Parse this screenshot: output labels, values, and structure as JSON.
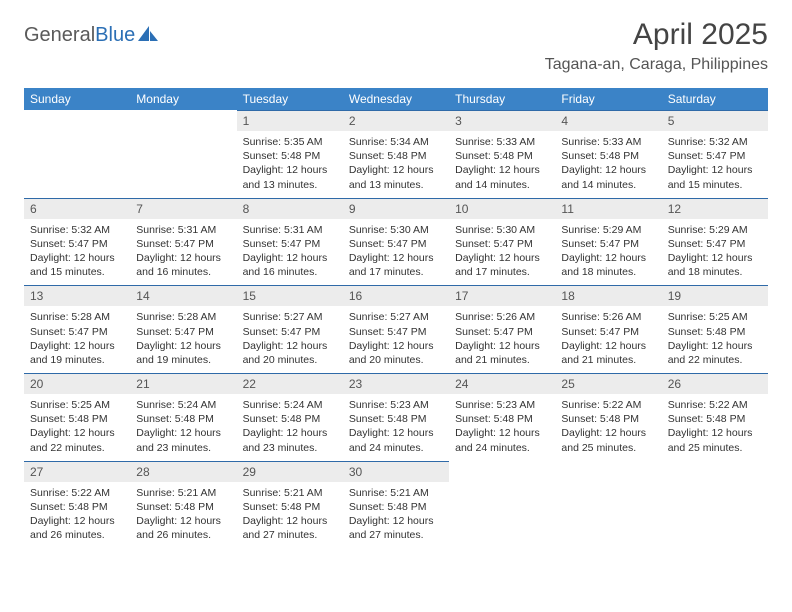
{
  "logo": {
    "part1": "General",
    "part2": "Blue"
  },
  "title": "April 2025",
  "location": "Tagana-an, Caraga, Philippines",
  "colors": {
    "header_bg": "#3b83c7",
    "daynum_bg": "#ececec",
    "day_border": "#2f6aa8",
    "logo_gray": "#5a5a5a",
    "logo_blue": "#2b6fb5"
  },
  "weekdays": [
    "Sunday",
    "Monday",
    "Tuesday",
    "Wednesday",
    "Thursday",
    "Friday",
    "Saturday"
  ],
  "grid": [
    [
      null,
      null,
      {
        "n": "1",
        "sr": "Sunrise: 5:35 AM",
        "ss": "Sunset: 5:48 PM",
        "d1": "Daylight: 12 hours",
        "d2": "and 13 minutes."
      },
      {
        "n": "2",
        "sr": "Sunrise: 5:34 AM",
        "ss": "Sunset: 5:48 PM",
        "d1": "Daylight: 12 hours",
        "d2": "and 13 minutes."
      },
      {
        "n": "3",
        "sr": "Sunrise: 5:33 AM",
        "ss": "Sunset: 5:48 PM",
        "d1": "Daylight: 12 hours",
        "d2": "and 14 minutes."
      },
      {
        "n": "4",
        "sr": "Sunrise: 5:33 AM",
        "ss": "Sunset: 5:48 PM",
        "d1": "Daylight: 12 hours",
        "d2": "and 14 minutes."
      },
      {
        "n": "5",
        "sr": "Sunrise: 5:32 AM",
        "ss": "Sunset: 5:47 PM",
        "d1": "Daylight: 12 hours",
        "d2": "and 15 minutes."
      }
    ],
    [
      {
        "n": "6",
        "sr": "Sunrise: 5:32 AM",
        "ss": "Sunset: 5:47 PM",
        "d1": "Daylight: 12 hours",
        "d2": "and 15 minutes."
      },
      {
        "n": "7",
        "sr": "Sunrise: 5:31 AM",
        "ss": "Sunset: 5:47 PM",
        "d1": "Daylight: 12 hours",
        "d2": "and 16 minutes."
      },
      {
        "n": "8",
        "sr": "Sunrise: 5:31 AM",
        "ss": "Sunset: 5:47 PM",
        "d1": "Daylight: 12 hours",
        "d2": "and 16 minutes."
      },
      {
        "n": "9",
        "sr": "Sunrise: 5:30 AM",
        "ss": "Sunset: 5:47 PM",
        "d1": "Daylight: 12 hours",
        "d2": "and 17 minutes."
      },
      {
        "n": "10",
        "sr": "Sunrise: 5:30 AM",
        "ss": "Sunset: 5:47 PM",
        "d1": "Daylight: 12 hours",
        "d2": "and 17 minutes."
      },
      {
        "n": "11",
        "sr": "Sunrise: 5:29 AM",
        "ss": "Sunset: 5:47 PM",
        "d1": "Daylight: 12 hours",
        "d2": "and 18 minutes."
      },
      {
        "n": "12",
        "sr": "Sunrise: 5:29 AM",
        "ss": "Sunset: 5:47 PM",
        "d1": "Daylight: 12 hours",
        "d2": "and 18 minutes."
      }
    ],
    [
      {
        "n": "13",
        "sr": "Sunrise: 5:28 AM",
        "ss": "Sunset: 5:47 PM",
        "d1": "Daylight: 12 hours",
        "d2": "and 19 minutes."
      },
      {
        "n": "14",
        "sr": "Sunrise: 5:28 AM",
        "ss": "Sunset: 5:47 PM",
        "d1": "Daylight: 12 hours",
        "d2": "and 19 minutes."
      },
      {
        "n": "15",
        "sr": "Sunrise: 5:27 AM",
        "ss": "Sunset: 5:47 PM",
        "d1": "Daylight: 12 hours",
        "d2": "and 20 minutes."
      },
      {
        "n": "16",
        "sr": "Sunrise: 5:27 AM",
        "ss": "Sunset: 5:47 PM",
        "d1": "Daylight: 12 hours",
        "d2": "and 20 minutes."
      },
      {
        "n": "17",
        "sr": "Sunrise: 5:26 AM",
        "ss": "Sunset: 5:47 PM",
        "d1": "Daylight: 12 hours",
        "d2": "and 21 minutes."
      },
      {
        "n": "18",
        "sr": "Sunrise: 5:26 AM",
        "ss": "Sunset: 5:47 PM",
        "d1": "Daylight: 12 hours",
        "d2": "and 21 minutes."
      },
      {
        "n": "19",
        "sr": "Sunrise: 5:25 AM",
        "ss": "Sunset: 5:48 PM",
        "d1": "Daylight: 12 hours",
        "d2": "and 22 minutes."
      }
    ],
    [
      {
        "n": "20",
        "sr": "Sunrise: 5:25 AM",
        "ss": "Sunset: 5:48 PM",
        "d1": "Daylight: 12 hours",
        "d2": "and 22 minutes."
      },
      {
        "n": "21",
        "sr": "Sunrise: 5:24 AM",
        "ss": "Sunset: 5:48 PM",
        "d1": "Daylight: 12 hours",
        "d2": "and 23 minutes."
      },
      {
        "n": "22",
        "sr": "Sunrise: 5:24 AM",
        "ss": "Sunset: 5:48 PM",
        "d1": "Daylight: 12 hours",
        "d2": "and 23 minutes."
      },
      {
        "n": "23",
        "sr": "Sunrise: 5:23 AM",
        "ss": "Sunset: 5:48 PM",
        "d1": "Daylight: 12 hours",
        "d2": "and 24 minutes."
      },
      {
        "n": "24",
        "sr": "Sunrise: 5:23 AM",
        "ss": "Sunset: 5:48 PM",
        "d1": "Daylight: 12 hours",
        "d2": "and 24 minutes."
      },
      {
        "n": "25",
        "sr": "Sunrise: 5:22 AM",
        "ss": "Sunset: 5:48 PM",
        "d1": "Daylight: 12 hours",
        "d2": "and 25 minutes."
      },
      {
        "n": "26",
        "sr": "Sunrise: 5:22 AM",
        "ss": "Sunset: 5:48 PM",
        "d1": "Daylight: 12 hours",
        "d2": "and 25 minutes."
      }
    ],
    [
      {
        "n": "27",
        "sr": "Sunrise: 5:22 AM",
        "ss": "Sunset: 5:48 PM",
        "d1": "Daylight: 12 hours",
        "d2": "and 26 minutes."
      },
      {
        "n": "28",
        "sr": "Sunrise: 5:21 AM",
        "ss": "Sunset: 5:48 PM",
        "d1": "Daylight: 12 hours",
        "d2": "and 26 minutes."
      },
      {
        "n": "29",
        "sr": "Sunrise: 5:21 AM",
        "ss": "Sunset: 5:48 PM",
        "d1": "Daylight: 12 hours",
        "d2": "and 27 minutes."
      },
      {
        "n": "30",
        "sr": "Sunrise: 5:21 AM",
        "ss": "Sunset: 5:48 PM",
        "d1": "Daylight: 12 hours",
        "d2": "and 27 minutes."
      },
      null,
      null,
      null
    ]
  ]
}
